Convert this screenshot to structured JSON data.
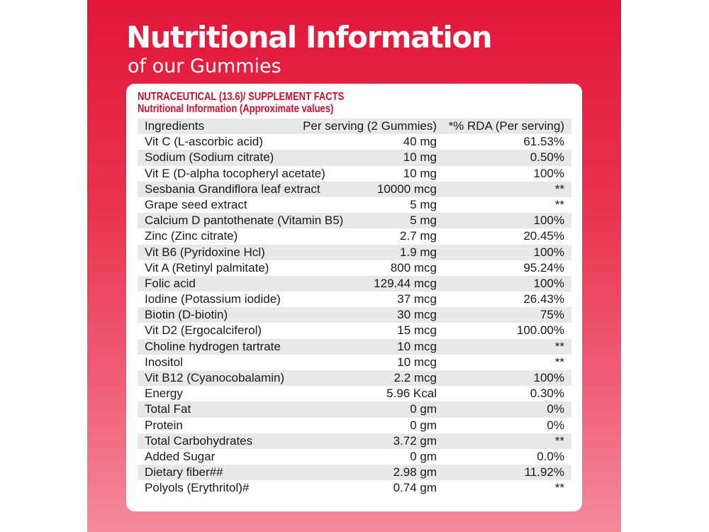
{
  "header": {
    "title": "Nutritional Information",
    "subtitle": "of our Gummies"
  },
  "facts": {
    "heading_line1": "NUTRACEUTICAL (13.6)/ SUPPLEMENT FACTS",
    "heading_line2": "Nutritional Information (Approximate values)",
    "columns": [
      "Ingredients",
      "Per serving (2 Gummies)",
      "*% RDA (Per serving)"
    ],
    "rows": [
      [
        "Vit C (L-ascorbic acid)",
        "40 mg",
        "61.53%"
      ],
      [
        "Sodium (Sodium citrate)",
        "10 mg",
        "0.50%"
      ],
      [
        "Vit E (D-alpha tocopheryl acetate)",
        "10 mg",
        "100%"
      ],
      [
        "Sesbania Grandiflora leaf extract",
        "10000 mcg",
        "**"
      ],
      [
        "Grape seed extract",
        "5 mg",
        "**"
      ],
      [
        "Calcium D pantothenate (Vitamin B5)",
        "5 mg",
        "100%"
      ],
      [
        "Zinc (Zinc citrate)",
        "2.7 mg",
        "20.45%"
      ],
      [
        "Vit B6 (Pyridoxine Hcl)",
        "1.9 mg",
        "100%"
      ],
      [
        "Vit A (Retinyl palmitate)",
        "800 mcg",
        "95.24%"
      ],
      [
        "Folic acid",
        "129.44 mcg",
        "100%"
      ],
      [
        "Iodine (Potassium iodide)",
        "37 mcg",
        "26.43%"
      ],
      [
        "Biotin (D-biotin)",
        "30 mcg",
        "75%"
      ],
      [
        "Vit D2 (Ergocalciferol)",
        "15 mcg",
        "100.00%"
      ],
      [
        "Choline hydrogen tartrate",
        "10 mcg",
        "**"
      ],
      [
        "Inositol",
        "10 mcg",
        "**"
      ],
      [
        "Vit B12 (Cyanocobalamin)",
        "2.2 mcg",
        "100%"
      ],
      [
        "Energy",
        "5.96 Kcal",
        "0.30%"
      ],
      [
        "Total Fat",
        "0 gm",
        "0%"
      ],
      [
        "Protein",
        "0 gm",
        "0%"
      ],
      [
        "Total Carbohydrates",
        "3.72 gm",
        "**"
      ],
      [
        "Added Sugar",
        "0 gm",
        "0.0%"
      ],
      [
        "Dietary fiber##",
        "2.98 gm",
        "11.92%"
      ],
      [
        "Polyols (Erythritol)#",
        "0.74 gm",
        "**"
      ]
    ]
  }
}
